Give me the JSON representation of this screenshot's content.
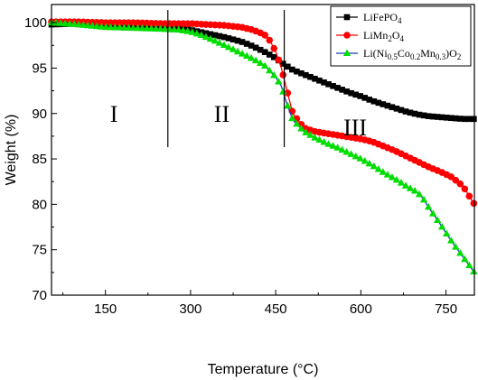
{
  "chart_data": {
    "type": "line",
    "xlabel": "Temperature (°C)",
    "ylabel": "Weight (%)",
    "xlim": [
      55,
      800
    ],
    "ylim": [
      70,
      102
    ],
    "xticks": [
      150,
      300,
      450,
      600,
      750
    ],
    "yticks": [
      70,
      75,
      80,
      85,
      90,
      95,
      100
    ],
    "grid": false,
    "legend_position": "top-right",
    "region_dividers": [
      260,
      465
    ],
    "regions": [
      {
        "label": "I",
        "x": 165,
        "y": 90
      },
      {
        "label": "II",
        "x": 355,
        "y": 90
      },
      {
        "label": "III",
        "x": 590,
        "y": 88.5
      }
    ],
    "series": [
      {
        "name": "LiFePO4",
        "name_base": "LiFePO",
        "name_sub": "4",
        "color": "#000000",
        "marker": "square",
        "x": [
          55,
          100,
          150,
          200,
          250,
          280,
          300,
          330,
          360,
          390,
          410,
          430,
          450,
          460,
          470,
          480,
          500,
          520,
          540,
          560,
          580,
          600,
          620,
          640,
          660,
          680,
          700,
          720,
          740,
          760,
          780,
          800
        ],
        "y": [
          99.8,
          99.9,
          99.8,
          99.7,
          99.6,
          99.4,
          99.2,
          98.8,
          98.4,
          97.9,
          97.4,
          96.8,
          96.1,
          95.6,
          95.2,
          94.8,
          94.3,
          93.8,
          93.3,
          92.8,
          92.3,
          91.9,
          91.4,
          91.0,
          90.6,
          90.2,
          89.9,
          89.7,
          89.6,
          89.5,
          89.4,
          89.4
        ]
      },
      {
        "name": "LiMn2O4",
        "name_parts": [
          "LiMn",
          "2",
          "O",
          "4"
        ],
        "color": "#ff0000",
        "marker": "circle",
        "x": [
          55,
          100,
          150,
          200,
          250,
          300,
          330,
          360,
          390,
          410,
          430,
          440,
          450,
          460,
          470,
          480,
          500,
          520,
          540,
          560,
          580,
          600,
          620,
          640,
          660,
          680,
          700,
          720,
          740,
          760,
          780,
          800
        ],
        "y": [
          100.1,
          100.1,
          100.0,
          100.0,
          99.9,
          99.9,
          99.8,
          99.7,
          99.5,
          99.2,
          98.7,
          98.0,
          96.8,
          95.0,
          92.5,
          90.0,
          88.4,
          88.0,
          87.8,
          87.6,
          87.4,
          87.2,
          86.9,
          86.4,
          85.9,
          85.3,
          84.7,
          84.1,
          83.6,
          83.0,
          82.0,
          80.0
        ]
      },
      {
        "name": "Li(Ni0.5Co0.2Mn0.3)O2",
        "name_parts": [
          "Li(Ni",
          "0.5",
          "Co",
          "0.2",
          "Mn",
          "0.3",
          ")O",
          "2"
        ],
        "color": "#1f3fbf",
        "marker_color": "#00dd00",
        "marker": "triangle",
        "x": [
          55,
          100,
          150,
          200,
          250,
          280,
          300,
          320,
          350,
          380,
          410,
          430,
          450,
          460,
          470,
          480,
          500,
          520,
          540,
          560,
          580,
          600,
          620,
          640,
          660,
          680,
          700,
          710,
          720,
          740,
          760,
          780,
          800
        ],
        "y": [
          100.0,
          99.8,
          99.5,
          99.4,
          99.3,
          99.2,
          99.0,
          98.6,
          97.8,
          96.9,
          96.0,
          95.3,
          94.0,
          93.0,
          91.0,
          89.3,
          88.0,
          87.3,
          86.7,
          86.2,
          85.6,
          85.0,
          84.3,
          83.5,
          82.8,
          82.0,
          81.3,
          80.6,
          79.6,
          77.8,
          75.9,
          74.2,
          72.5
        ]
      }
    ]
  }
}
